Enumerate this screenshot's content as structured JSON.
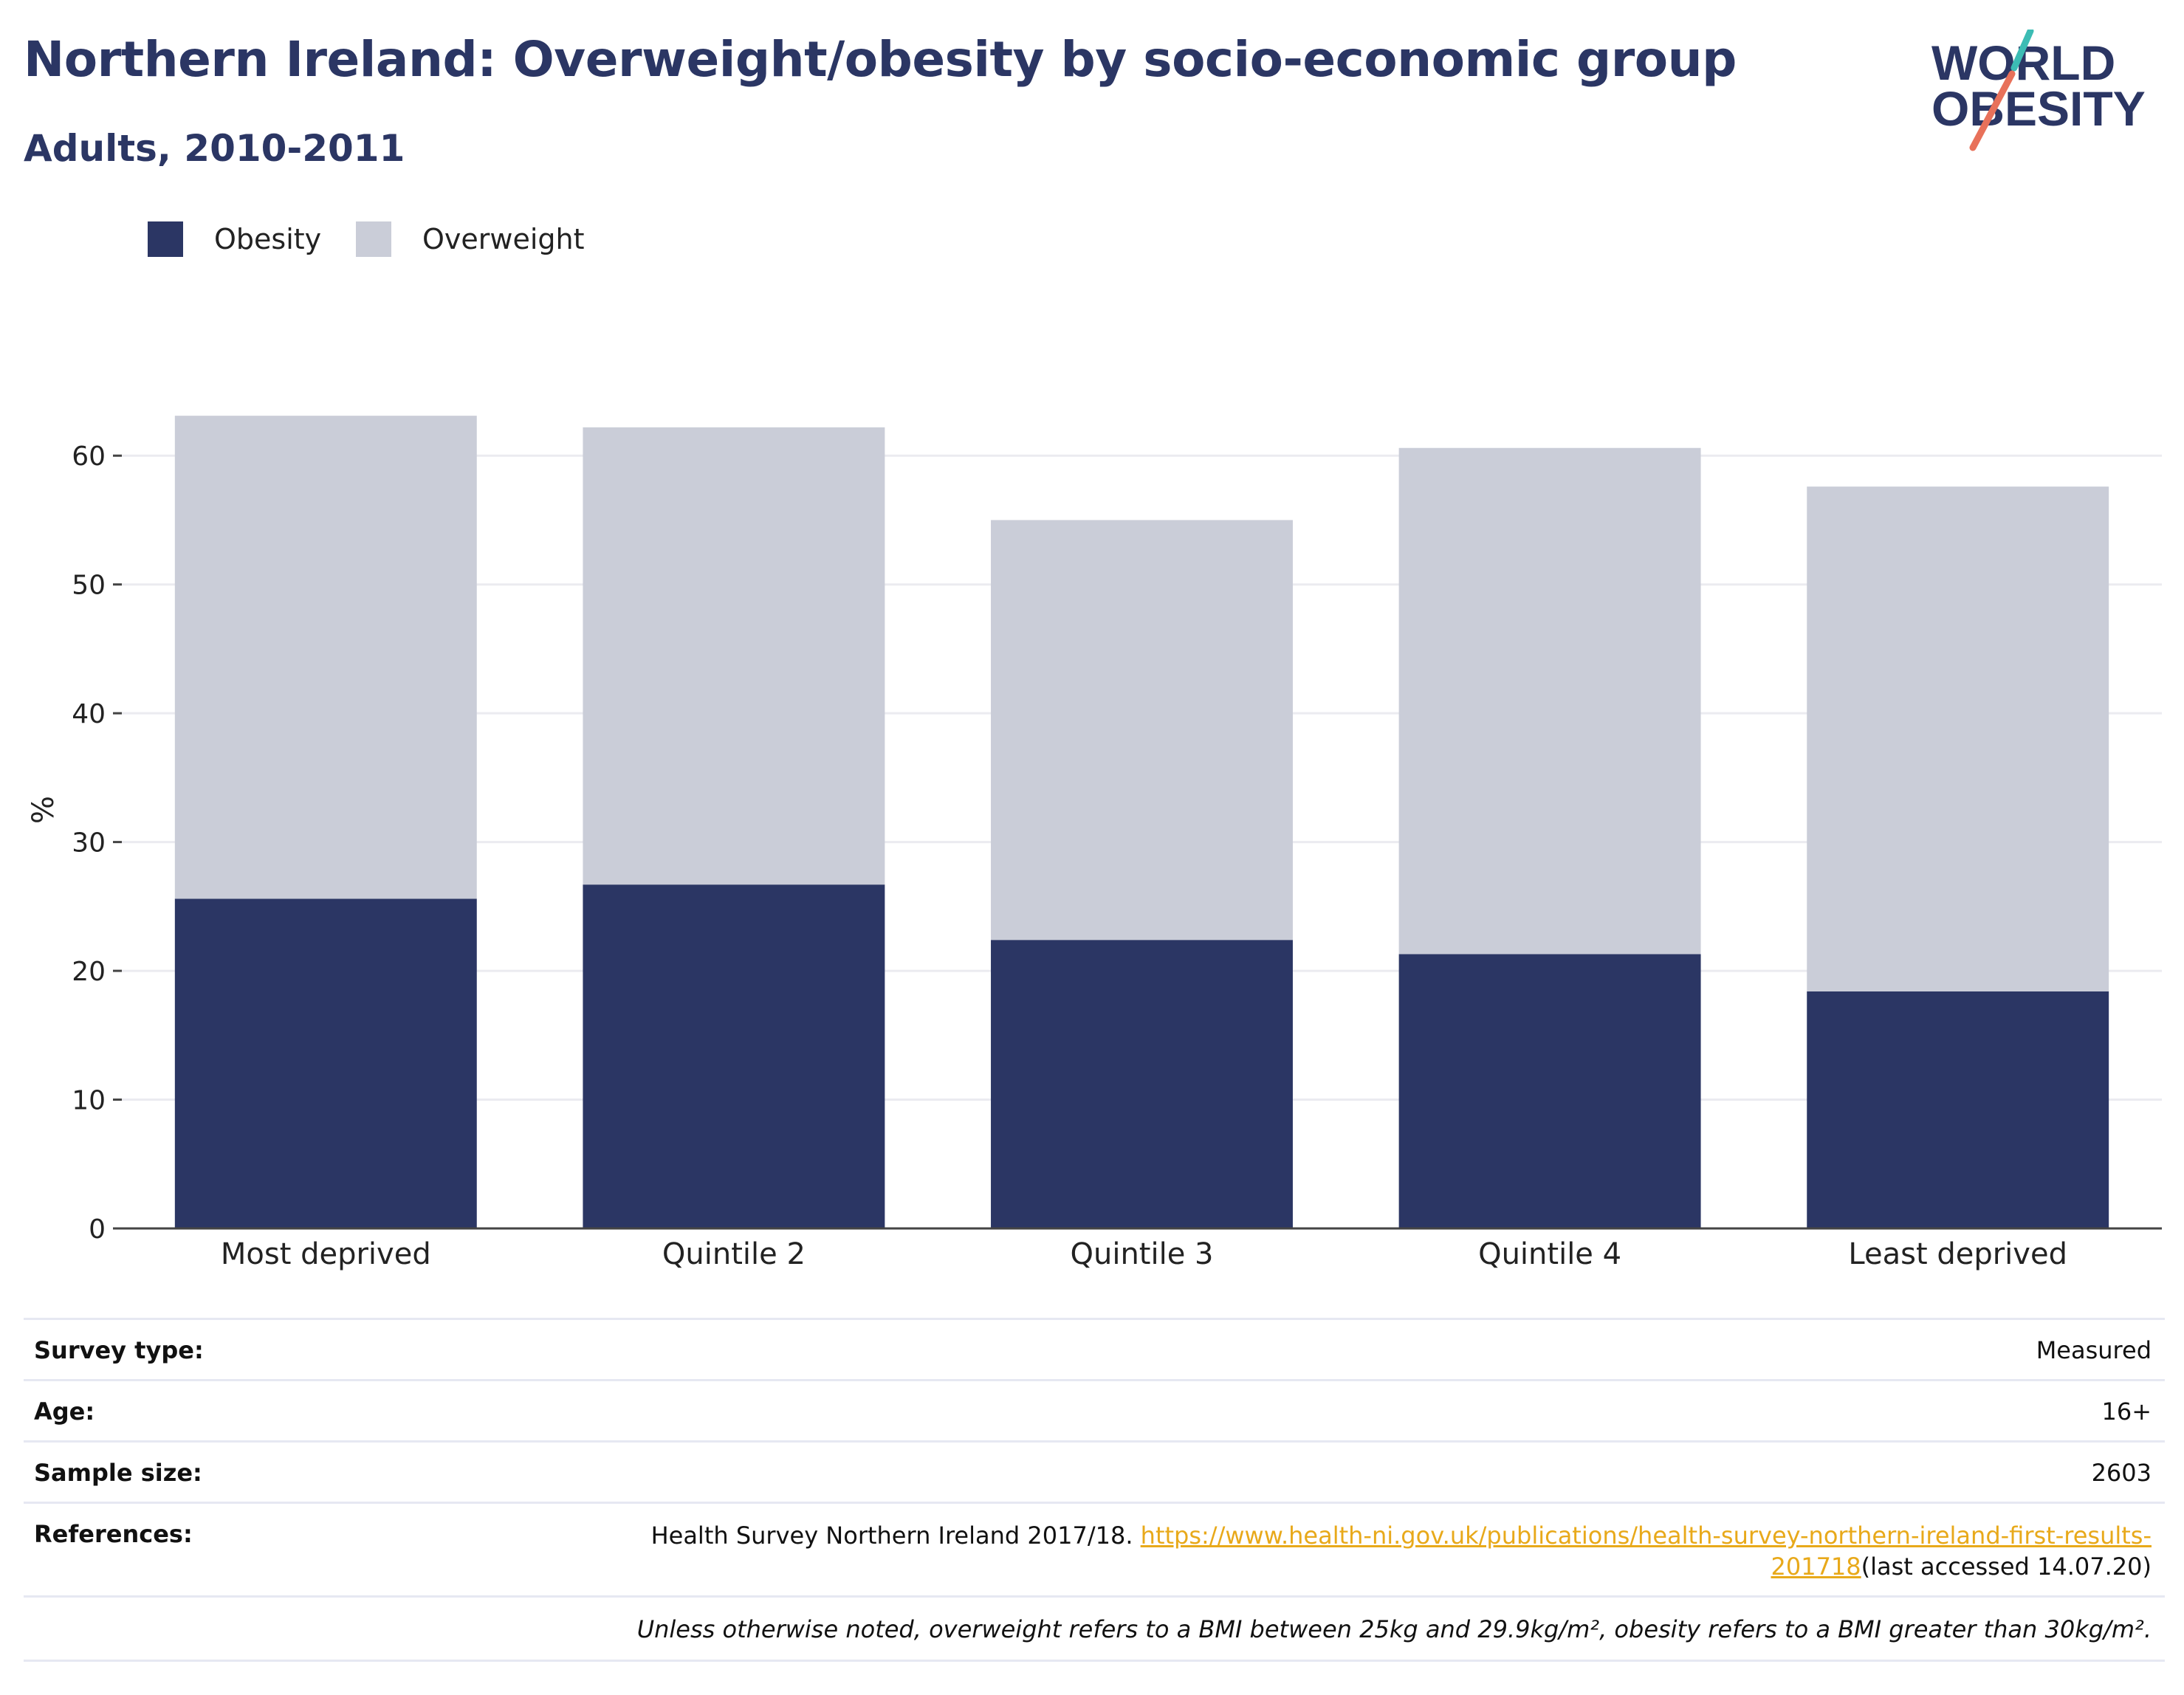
{
  "header": {
    "title": "Northern Ireland: Overweight/obesity by socio-economic group",
    "subtitle": "Adults, 2010-2011"
  },
  "logo": {
    "line1": "WORLD",
    "line2": "OBESITY",
    "colors": {
      "text": "#2b3664",
      "slash_top": "#3cbcb4",
      "slash_bottom": "#e8715a"
    }
  },
  "legend": {
    "items": [
      {
        "label": "Obesity",
        "color": "#2b3664"
      },
      {
        "label": "Overweight",
        "color": "#cacdd8"
      }
    ]
  },
  "chart_data": {
    "type": "bar",
    "stacked": true,
    "categories": [
      "Most deprived",
      "Quintile 2",
      "Quintile 3",
      "Quintile 4",
      "Least deprived"
    ],
    "series": [
      {
        "name": "Obesity",
        "color": "#2b3664",
        "values": [
          25.6,
          26.7,
          22.4,
          21.3,
          18.4
        ]
      },
      {
        "name": "Overweight",
        "color": "#cacdd8",
        "values": [
          37.5,
          35.5,
          32.6,
          39.3,
          39.2
        ]
      }
    ],
    "title": "",
    "xlabel": "",
    "ylabel": "%",
    "ylim": [
      0,
      65
    ],
    "yticks": [
      0,
      10,
      20,
      30,
      40,
      50,
      60
    ],
    "grid": true,
    "legend_position": "top-left"
  },
  "info": {
    "survey_type_label": "Survey type:",
    "survey_type_value": "Measured",
    "age_label": "Age:",
    "age_value": "16+",
    "sample_size_label": "Sample size:",
    "sample_size_value": "2603",
    "references_label": "References:",
    "references_text": "Health Survey Northern Ireland 2017/18. ",
    "references_link_1": "https://www.health-ni.gov.uk/publications/health-survey-northern-ireland-first-results-",
    "references_link_2": "201718",
    "references_suffix": "(last accessed 14.07.20)",
    "note": "Unless otherwise noted, overweight refers to a BMI between 25kg and 29.9kg/m², obesity refers to a BMI greater than 30kg/m²."
  }
}
